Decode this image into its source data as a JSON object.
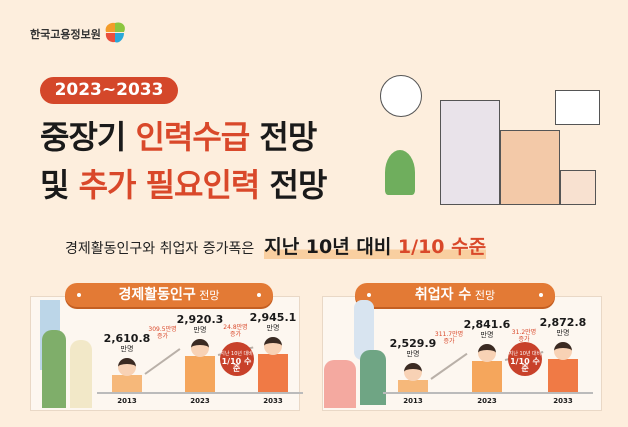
{
  "logo": {
    "text": "한국고용정보원"
  },
  "header": {
    "period": "2023~2033",
    "title_line1": {
      "a": "중장기 ",
      "b": "인력수급",
      "c": " 전망"
    },
    "title_line2": {
      "a": "및 ",
      "b": "추가 필요인력",
      "c": " 전망"
    }
  },
  "subtitle": {
    "normal": "경제활동인구와 취업자 증가폭은",
    "strong_a": "지난 10년 대비 ",
    "strong_b": "1/10 수준"
  },
  "panels": [
    {
      "title": "경제활동인구",
      "title_suffix": " 전망",
      "unit": "만명",
      "points": [
        {
          "year": "2013",
          "value": "2,610.8",
          "v": 2610.8
        },
        {
          "year": "2023",
          "value": "2,920.3",
          "v": 2920.3
        },
        {
          "year": "2033",
          "value": "2,945.1",
          "v": 2945.1
        }
      ],
      "increases": [
        "309.5만명",
        "24.8만명"
      ],
      "increase_suffix": "증가",
      "badge": {
        "top": "지난 10년 대비",
        "main": "1/10 수준"
      }
    },
    {
      "title": "취업자 수",
      "title_suffix": " 전망",
      "unit": "만명",
      "points": [
        {
          "year": "2013",
          "value": "2,529.9",
          "v": 2529.9
        },
        {
          "year": "2023",
          "value": "2,841.6",
          "v": 2841.6
        },
        {
          "year": "2033",
          "value": "2,872.8",
          "v": 2872.8
        }
      ],
      "increases": [
        "311.7만명",
        "31.2만명"
      ],
      "increase_suffix": "증가",
      "badge": {
        "top": "지난 10년 대비",
        "main": "1/10 수준"
      }
    }
  ],
  "colors": {
    "background": "#fdeedd",
    "accent": "#d9482a",
    "panel_header": "#e37a35",
    "bar_2013": "#f6b87a",
    "bar_2023": "#f5a65c",
    "bar_2033": "#f07a45"
  }
}
